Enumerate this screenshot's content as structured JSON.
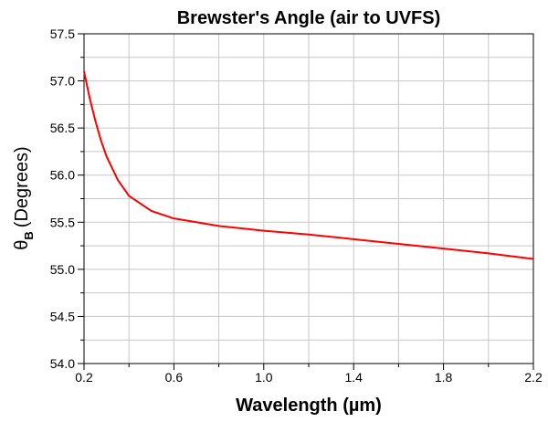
{
  "chart_data": {
    "type": "line",
    "title": "Brewster's Angle (air to UVFS)",
    "xlabel": "Wavelength (µm)",
    "ylabel": {
      "symbol": "θ",
      "subscript": "B",
      "text": "(Degrees)"
    },
    "series": [
      {
        "color": "#ff0000",
        "x": [
          0.2,
          0.225,
          0.25,
          0.275,
          0.3,
          0.35,
          0.4,
          0.5,
          0.6,
          0.8,
          1.0,
          1.2,
          1.4,
          1.6,
          1.8,
          2.0,
          2.2
        ],
        "values": [
          57.1,
          56.82,
          56.58,
          56.37,
          56.2,
          55.95,
          55.78,
          55.62,
          55.54,
          55.46,
          55.41,
          55.37,
          55.32,
          55.27,
          55.22,
          55.17,
          55.11
        ]
      }
    ],
    "xlim": [
      0.2,
      2.2
    ],
    "ylim": [
      54.0,
      57.5
    ],
    "xticks": [
      0.2,
      0.6,
      {
        "value": 1.0,
        "label": "1.0"
      },
      1.4,
      1.8,
      2.2
    ],
    "yticks": [
      {
        "value": 54.0,
        "label": "54.0"
      },
      54.5,
      {
        "value": 55.0,
        "label": "55.0"
      },
      55.5,
      {
        "value": 56.0,
        "label": "56.0"
      },
      56.5,
      {
        "value": 57.0,
        "label": "57.0"
      },
      57.5
    ],
    "minor_xticks": [
      0.4,
      0.8,
      1.2,
      1.6,
      2.0
    ],
    "minor_yticks": [
      54.25,
      54.75,
      55.25,
      55.75,
      56.25,
      56.75,
      57.25
    ],
    "grid": true
  }
}
